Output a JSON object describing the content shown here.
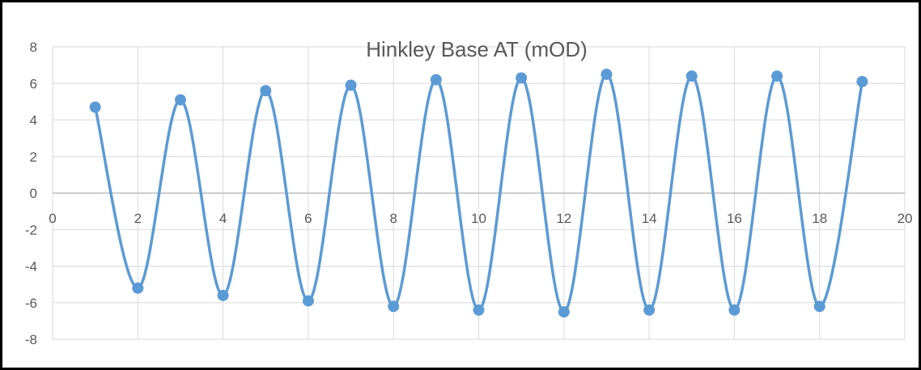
{
  "chart_data": {
    "type": "scatter",
    "title": "Hinkley Base AT (mOD)",
    "xlabel": "",
    "ylabel": "",
    "xlim": [
      0,
      20
    ],
    "ylim": [
      -8,
      8
    ],
    "x_ticks": [
      0,
      2,
      4,
      6,
      8,
      10,
      12,
      14,
      16,
      18,
      20
    ],
    "y_ticks": [
      8,
      6,
      4,
      2,
      0,
      -2,
      -4,
      -6,
      -8
    ],
    "grid": true,
    "smooth_lines": true,
    "series": [
      {
        "color": "#5b9bd5",
        "x": [
          1,
          2,
          3,
          4,
          5,
          6,
          7,
          8,
          9,
          10,
          11,
          12,
          13,
          14,
          15,
          16,
          17,
          18,
          19
        ],
        "y": [
          4.7,
          -5.2,
          5.1,
          -5.6,
          5.6,
          -5.9,
          5.9,
          -6.2,
          6.2,
          -6.4,
          6.3,
          -6.5,
          6.5,
          -6.4,
          6.4,
          -6.4,
          6.4,
          -6.2,
          6.1
        ]
      }
    ]
  }
}
